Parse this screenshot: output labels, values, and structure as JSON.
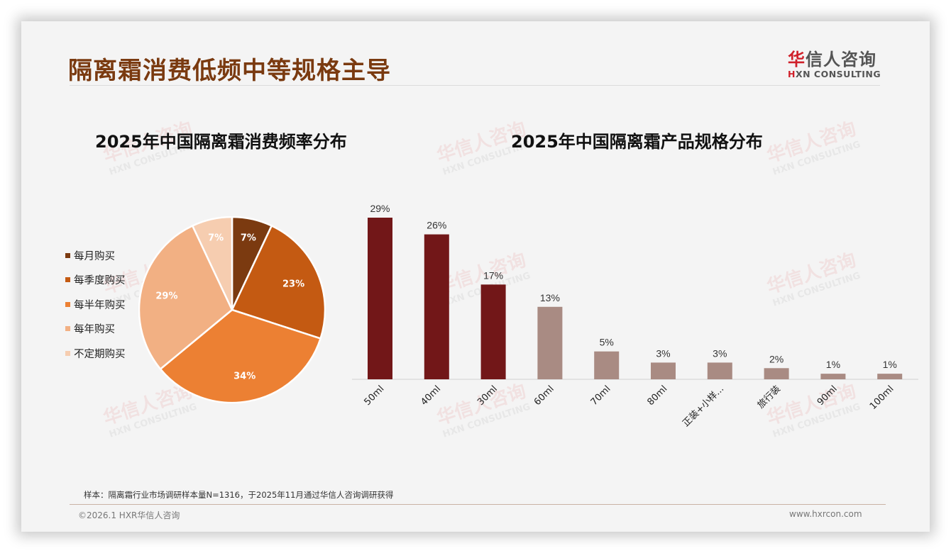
{
  "header": {
    "title": "隔离霜消费低频中等规格主导",
    "logo_cn_accent": "华",
    "logo_cn_rest": "信人咨询",
    "logo_en_accent": "H",
    "logo_en_rest": "XN CONSULTING"
  },
  "watermark": {
    "cn": "华信人咨询",
    "en": "HXN CONSULTING"
  },
  "colors": {
    "title": "#7a3a10",
    "bar_dark": "#721718",
    "bar_light": "#a98b83",
    "pie": [
      "#7b3a10",
      "#c45a12",
      "#ec8033",
      "#f2b083",
      "#f6cdb0"
    ]
  },
  "chart_data": [
    {
      "type": "pie",
      "title": "2025年中国隔离霜消费频率分布",
      "legend_position": "left",
      "categories": [
        "每月购买",
        "每季度购买",
        "每半年购买",
        "每年购买",
        "不定期购买"
      ],
      "values": [
        7,
        23,
        34,
        29,
        7
      ],
      "labels": [
        "7%",
        "23%",
        "34%",
        "29%",
        "7%"
      ],
      "unit": "%"
    },
    {
      "type": "bar",
      "title": "2025年中国隔离霜产品规格分布",
      "categories": [
        "50ml",
        "40ml",
        "30ml",
        "60ml",
        "70ml",
        "80ml",
        "正装+小样...",
        "旅行装",
        "90ml",
        "100ml"
      ],
      "values": [
        29,
        26,
        17,
        13,
        5,
        3,
        3,
        2,
        1,
        1
      ],
      "labels": [
        "29%",
        "26%",
        "17%",
        "13%",
        "5%",
        "3%",
        "3%",
        "2%",
        "1%",
        "1%"
      ],
      "highlight_first_n": 3,
      "xlabel": "",
      "ylabel": "",
      "grid": false,
      "unit": "%"
    }
  ],
  "footer": {
    "note": "样本：隔离霜行业市场调研样本量N=1316，于2025年11月通过华信人咨询调研获得",
    "copyright": "©2026.1 HXR华信人咨询",
    "website": "www.hxrcon.com"
  }
}
